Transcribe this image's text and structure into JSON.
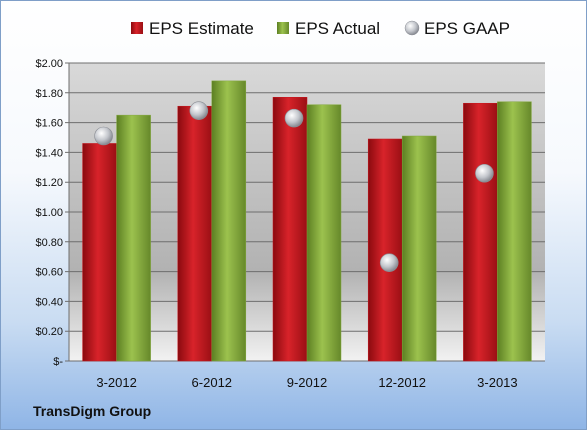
{
  "footer": {
    "company": "TransDigm Group"
  },
  "colors": {
    "estimate": "#c8141c",
    "actual": "#82a83c",
    "gaap": "#b8bcc4"
  },
  "chart_data": {
    "type": "bar",
    "categories": [
      "3-2012",
      "6-2012",
      "9-2012",
      "12-2012",
      "3-2013"
    ],
    "series": [
      {
        "name": "EPS Estimate",
        "kind": "bar",
        "values": [
          1.46,
          1.71,
          1.77,
          1.49,
          1.73
        ]
      },
      {
        "name": "EPS Actual",
        "kind": "bar",
        "values": [
          1.65,
          1.88,
          1.72,
          1.51,
          1.74
        ]
      },
      {
        "name": "EPS GAAP",
        "kind": "scatter",
        "values": [
          1.51,
          1.68,
          1.63,
          0.66,
          1.26
        ]
      }
    ],
    "ylim": [
      0,
      2.0
    ],
    "yticks": [
      "$-",
      "$0.20",
      "$0.40",
      "$0.60",
      "$0.80",
      "$1.00",
      "$1.20",
      "$1.40",
      "$1.60",
      "$1.80",
      "$2.00"
    ],
    "grid": true,
    "legend": "top"
  }
}
